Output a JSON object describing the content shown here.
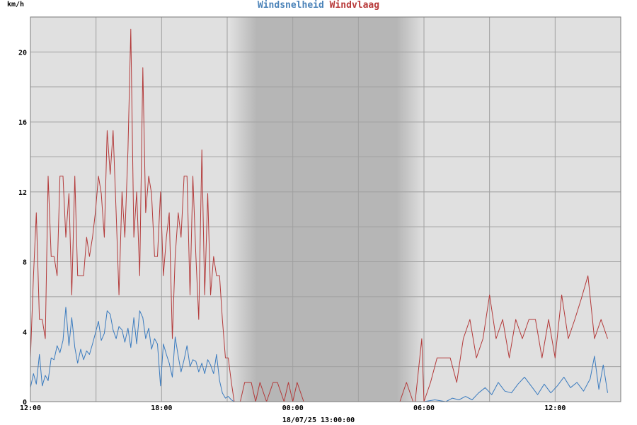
{
  "header": {
    "series1_label": "Windsnelheid",
    "series2_label": "Windvlaag",
    "unit": "km/h"
  },
  "footer": {
    "timestamp": "18/07/25 13:00:00"
  },
  "chart_data": {
    "type": "line",
    "title": "",
    "ylabel": "km/h",
    "ylim": [
      0,
      22
    ],
    "yticks": [
      0,
      4,
      8,
      12,
      16,
      20
    ],
    "xlim": [
      0,
      27
    ],
    "xticks": [
      {
        "x": 0,
        "label": "12:00"
      },
      {
        "x": 6,
        "label": "18:00"
      },
      {
        "x": 12,
        "label": "00:00"
      },
      {
        "x": 18,
        "label": "06:00"
      },
      {
        "x": 24,
        "label": "12:00"
      }
    ],
    "night_band": {
      "start": 9.1,
      "end": 18.0
    },
    "grid": true,
    "colors": {
      "speed": "#3a7bbf",
      "gust": "#b33a3a",
      "plot_bg": "#e0e0e0",
      "grid": "#a0a0a0"
    },
    "series": [
      {
        "name": "Windsnelheid",
        "x": [
          0.0,
          0.14,
          0.27,
          0.41,
          0.54,
          0.68,
          0.81,
          0.95,
          1.08,
          1.22,
          1.35,
          1.49,
          1.62,
          1.76,
          1.89,
          2.03,
          2.16,
          2.3,
          2.43,
          2.57,
          2.7,
          2.84,
          2.97,
          3.11,
          3.24,
          3.38,
          3.51,
          3.65,
          3.78,
          3.92,
          4.05,
          4.19,
          4.32,
          4.46,
          4.59,
          4.73,
          4.86,
          5.0,
          5.14,
          5.27,
          5.41,
          5.54,
          5.68,
          5.81,
          5.95,
          6.08,
          6.22,
          6.35,
          6.49,
          6.62,
          6.76,
          6.89,
          7.03,
          7.16,
          7.3,
          7.43,
          7.57,
          7.7,
          7.84,
          7.97,
          8.11,
          8.24,
          8.38,
          8.51,
          8.65,
          8.78,
          8.92,
          9.05,
          9.19,
          9.32,
          9.46,
          9.59,
          9.73,
          9.86,
          10.0,
          12.0,
          14.0,
          16.0,
          17.0,
          17.3,
          17.6,
          17.9,
          18.0,
          18.5,
          19.0,
          19.3,
          19.6,
          19.9,
          20.2,
          20.5,
          20.8,
          21.1,
          21.4,
          21.7,
          22.0,
          22.3,
          22.6,
          22.9,
          23.2,
          23.5,
          23.8,
          24.1,
          24.4,
          24.7,
          25.0,
          25.3,
          25.6,
          25.8,
          26.0,
          26.2,
          26.4
        ],
        "values": [
          0.8,
          1.6,
          1.0,
          2.7,
          0.9,
          1.5,
          1.2,
          2.5,
          2.4,
          3.2,
          2.8,
          3.5,
          5.4,
          3.2,
          4.8,
          3.1,
          2.2,
          3.0,
          2.4,
          2.9,
          2.7,
          3.3,
          3.9,
          4.6,
          3.5,
          3.9,
          5.2,
          5.0,
          4.1,
          3.6,
          4.3,
          4.1,
          3.4,
          4.2,
          3.1,
          4.8,
          3.3,
          5.2,
          4.8,
          3.6,
          4.2,
          3.0,
          3.6,
          3.3,
          0.9,
          3.3,
          2.7,
          2.2,
          1.4,
          3.7,
          2.6,
          1.7,
          2.4,
          3.2,
          2.0,
          2.4,
          2.3,
          1.7,
          2.2,
          1.6,
          2.4,
          2.1,
          1.6,
          2.7,
          1.2,
          0.5,
          0.2,
          0.3,
          0.1,
          0.0,
          0.0,
          0.0,
          0.0,
          0.0,
          0.0,
          0.0,
          0.0,
          0.0,
          0.0,
          0.0,
          0.0,
          0.0,
          0.0,
          0.1,
          0.0,
          0.2,
          0.1,
          0.3,
          0.1,
          0.5,
          0.8,
          0.4,
          1.1,
          0.6,
          0.5,
          1.0,
          1.4,
          0.9,
          0.4,
          1.0,
          0.5,
          0.9,
          1.4,
          0.8,
          1.1,
          0.6,
          1.3,
          2.6,
          0.7,
          2.1,
          0.5
        ]
      },
      {
        "name": "Windvlaag",
        "x": [
          0.0,
          0.14,
          0.27,
          0.41,
          0.54,
          0.68,
          0.81,
          0.95,
          1.08,
          1.22,
          1.35,
          1.49,
          1.62,
          1.76,
          1.89,
          2.03,
          2.16,
          2.3,
          2.43,
          2.57,
          2.7,
          2.84,
          2.97,
          3.11,
          3.24,
          3.38,
          3.51,
          3.65,
          3.78,
          3.92,
          4.05,
          4.19,
          4.32,
          4.46,
          4.59,
          4.73,
          4.86,
          5.0,
          5.14,
          5.27,
          5.41,
          5.54,
          5.68,
          5.81,
          5.95,
          6.08,
          6.22,
          6.35,
          6.49,
          6.62,
          6.76,
          6.89,
          7.03,
          7.16,
          7.3,
          7.43,
          7.57,
          7.7,
          7.84,
          7.97,
          8.11,
          8.24,
          8.38,
          8.51,
          8.65,
          8.78,
          8.92,
          9.05,
          9.19,
          9.32,
          9.46,
          9.6,
          9.8,
          10.1,
          10.3,
          10.5,
          10.8,
          11.1,
          11.3,
          11.6,
          11.8,
          12.0,
          12.2,
          12.5,
          12.8,
          13.1,
          13.4,
          14.0,
          15.0,
          16.0,
          16.9,
          17.2,
          17.5,
          17.6,
          17.9,
          18.0,
          18.3,
          18.6,
          18.9,
          19.2,
          19.5,
          19.8,
          20.1,
          20.4,
          20.7,
          21.0,
          21.3,
          21.6,
          21.9,
          22.2,
          22.5,
          22.8,
          23.1,
          23.4,
          23.7,
          24.0,
          24.3,
          24.6,
          24.9,
          25.2,
          25.5,
          25.8,
          26.1,
          26.4
        ],
        "values": [
          2.5,
          7.2,
          10.8,
          4.7,
          4.7,
          3.6,
          12.9,
          8.3,
          8.3,
          7.2,
          12.9,
          12.9,
          9.4,
          11.9,
          6.1,
          12.9,
          7.2,
          7.2,
          7.2,
          9.4,
          8.3,
          9.4,
          10.8,
          12.9,
          11.9,
          9.4,
          15.5,
          13.0,
          15.5,
          10.8,
          6.1,
          12.0,
          9.4,
          14.4,
          21.3,
          9.4,
          12.0,
          7.2,
          19.1,
          10.8,
          12.9,
          11.9,
          8.3,
          8.3,
          12.0,
          7.2,
          9.4,
          10.8,
          3.6,
          8.3,
          10.8,
          9.4,
          12.9,
          12.9,
          6.1,
          12.9,
          8.3,
          4.7,
          14.4,
          6.1,
          11.9,
          6.1,
          8.3,
          7.2,
          7.2,
          4.7,
          2.5,
          2.5,
          1.1,
          0.0,
          0.0,
          0.0,
          1.1,
          1.1,
          0.0,
          1.1,
          0.0,
          1.1,
          1.1,
          0.0,
          1.1,
          0.0,
          1.1,
          0.0,
          0.0,
          0.0,
          0.0,
          0.0,
          0.0,
          0.0,
          0.0,
          1.1,
          0.0,
          0.0,
          3.6,
          0.0,
          1.1,
          2.5,
          2.5,
          2.5,
          1.1,
          3.6,
          4.7,
          2.5,
          3.6,
          6.1,
          3.6,
          4.7,
          2.5,
          4.7,
          3.6,
          4.7,
          4.7,
          2.5,
          4.7,
          2.5,
          6.1,
          3.6,
          4.7,
          5.9,
          7.2,
          3.6,
          4.7,
          3.6
        ]
      }
    ]
  }
}
